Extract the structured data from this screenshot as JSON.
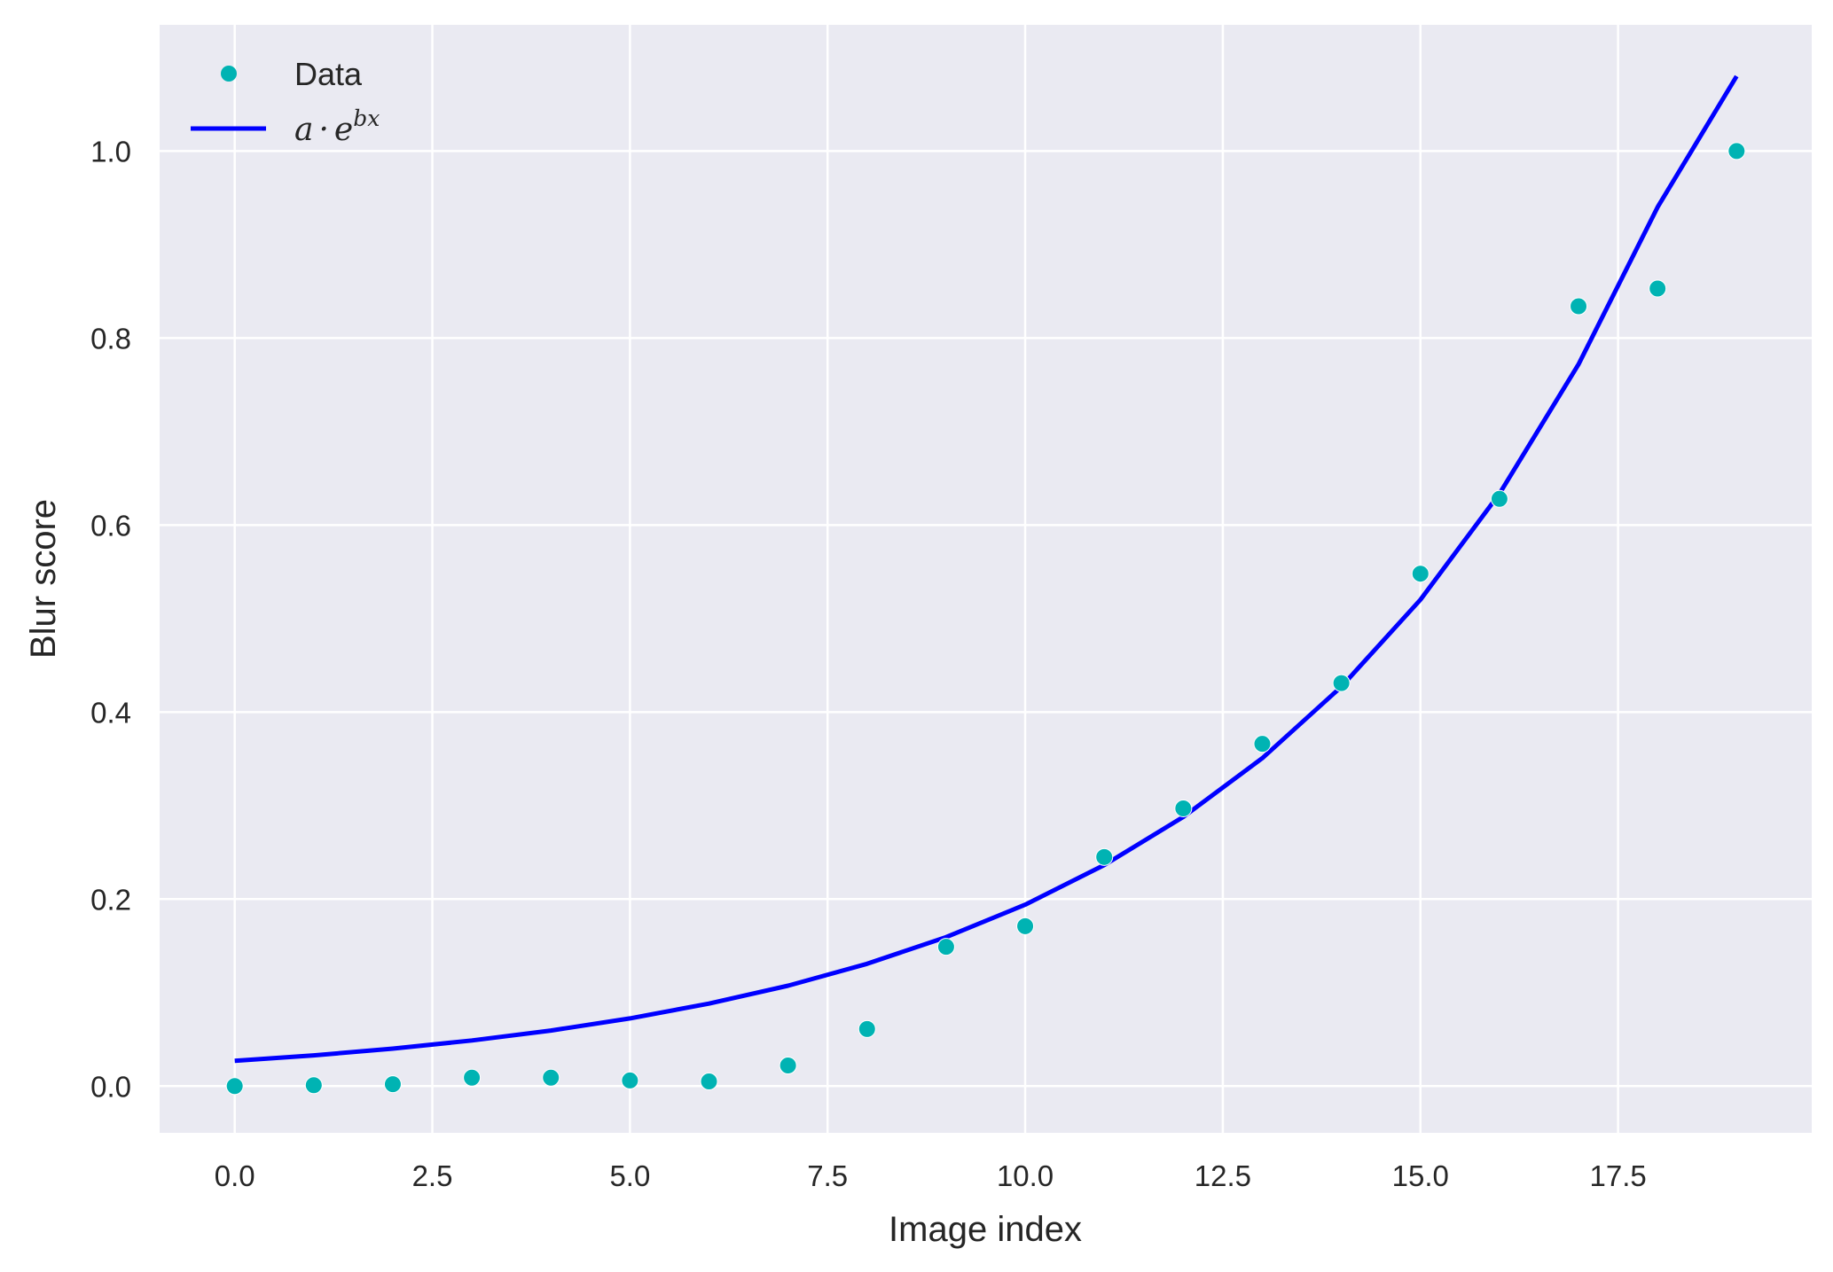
{
  "chart_data": {
    "type": "scatter",
    "xlabel": "Image index",
    "ylabel": "Blur score",
    "xlim": [
      -0.95,
      19.95
    ],
    "ylim": [
      -0.05,
      1.135
    ],
    "xticks": [
      0.0,
      2.5,
      5.0,
      7.5,
      10.0,
      12.5,
      15.0,
      17.5
    ],
    "xtick_labels": [
      "0.0",
      "2.5",
      "5.0",
      "7.5",
      "10.0",
      "12.5",
      "15.0",
      "17.5"
    ],
    "yticks": [
      0.0,
      0.2,
      0.4,
      0.6,
      0.8,
      1.0
    ],
    "ytick_labels": [
      "0.0",
      "0.2",
      "0.4",
      "0.6",
      "0.8",
      "1.0"
    ],
    "grid": true,
    "background": "#EAEAF2",
    "legend_position": "top-left",
    "series": [
      {
        "name": "Data",
        "kind": "scatter",
        "color": "#00B3B3",
        "x": [
          0,
          1,
          2,
          3,
          4,
          5,
          6,
          7,
          8,
          9,
          10,
          11,
          12,
          13,
          14,
          15,
          16,
          17,
          18,
          19
        ],
        "y": [
          0.0,
          0.001,
          0.002,
          0.009,
          0.009,
          0.006,
          0.005,
          0.022,
          0.061,
          0.149,
          0.171,
          0.245,
          0.297,
          0.366,
          0.431,
          0.548,
          0.628,
          0.834,
          0.853,
          1.0
        ]
      },
      {
        "name": "a · e^bx",
        "legend_parts": {
          "a": "a",
          "dot": "·",
          "e": "e",
          "exp": "bx"
        },
        "kind": "line",
        "color": "#0000FF",
        "x": [
          0,
          1,
          2,
          3,
          4,
          5,
          6,
          7,
          8,
          9,
          10,
          11,
          12,
          13,
          14,
          15,
          16,
          17,
          18,
          19
        ],
        "y": [
          0.027,
          0.0329,
          0.0401,
          0.0488,
          0.0594,
          0.0724,
          0.0882,
          0.1074,
          0.1308,
          0.1593,
          0.194,
          0.2364,
          0.2879,
          0.3507,
          0.4271,
          0.5202,
          0.6336,
          0.7718,
          0.94,
          1.08
        ]
      }
    ]
  }
}
